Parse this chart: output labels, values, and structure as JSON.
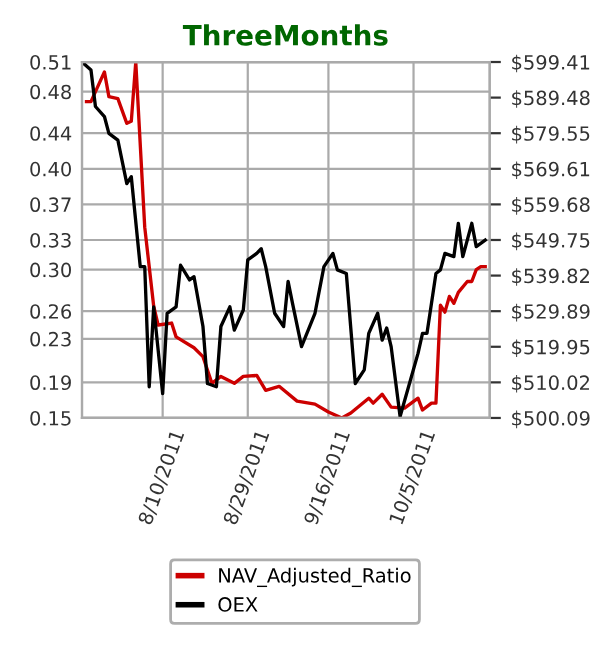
{
  "chart_data": {
    "type": "line",
    "title": "ThreeMonths",
    "xlim": [
      "2011-07-23",
      "2011-10-22"
    ],
    "xticks": [
      {
        "value": "2011-08-10",
        "label": "8/10/2011"
      },
      {
        "value": "2011-08-29",
        "label": "8/29/2011"
      },
      {
        "value": "2011-09-16",
        "label": "9/16/2011"
      },
      {
        "value": "2011-10-05",
        "label": "10/5/2011"
      }
    ],
    "ylim": [
      0.15,
      0.51
    ],
    "yticks": [
      {
        "value": 0.15,
        "label": "0.15"
      },
      {
        "value": 0.186,
        "label": "0.19"
      },
      {
        "value": 0.23,
        "label": "0.23"
      },
      {
        "value": 0.258,
        "label": "0.26"
      },
      {
        "value": 0.3,
        "label": "0.30"
      },
      {
        "value": 0.33,
        "label": "0.33"
      },
      {
        "value": 0.366,
        "label": "0.37"
      },
      {
        "value": 0.402,
        "label": "0.40"
      },
      {
        "value": 0.438,
        "label": "0.44"
      },
      {
        "value": 0.48,
        "label": "0.48"
      },
      {
        "value": 0.51,
        "label": "0.51"
      }
    ],
    "y2lim": [
      500.09,
      599.41
    ],
    "y2ticks": [
      {
        "value": 500.09,
        "label": "$500.09"
      },
      {
        "value": 510.022,
        "label": "$510.02"
      },
      {
        "value": 519.954,
        "label": "$519.95"
      },
      {
        "value": 529.886,
        "label": "$529.89"
      },
      {
        "value": 539.818,
        "label": "$539.82"
      },
      {
        "value": 549.75,
        "label": "$549.75"
      },
      {
        "value": 559.682,
        "label": "$559.68"
      },
      {
        "value": 569.614,
        "label": "$569.61"
      },
      {
        "value": 579.546,
        "label": "$579.55"
      },
      {
        "value": 589.478,
        "label": "$589.48"
      },
      {
        "value": 599.41,
        "label": "$599.41"
      }
    ],
    "grid": true,
    "legend": "bottom",
    "marker": "none",
    "line_style": "solid",
    "series": [
      {
        "name": "NAV_Adjusted_Ratio",
        "color": "#cc0000",
        "x": [
          "2011-07-24",
          "2011-07-25",
          "2011-07-28",
          "2011-07-29",
          "2011-07-31",
          "2011-08-02",
          "2011-08-03",
          "2011-08-04",
          "2011-08-06",
          "2011-08-08",
          "2011-08-09",
          "2011-08-12",
          "2011-08-13",
          "2011-08-17",
          "2011-08-19",
          "2011-08-21",
          "2011-08-23",
          "2011-08-26",
          "2011-08-28",
          "2011-08-31",
          "2011-09-02",
          "2011-09-05",
          "2011-09-09",
          "2011-09-13",
          "2011-09-16",
          "2011-09-19",
          "2011-09-21",
          "2011-09-25",
          "2011-09-26",
          "2011-09-28",
          "2011-09-30",
          "2011-10-03",
          "2011-10-06",
          "2011-10-07",
          "2011-10-09",
          "2011-10-10",
          "2011-10-11",
          "2011-10-12",
          "2011-10-13",
          "2011-10-14",
          "2011-10-15",
          "2011-10-17",
          "2011-10-18",
          "2011-10-19",
          "2011-10-20",
          "2011-10-21"
        ],
        "values": [
          0.47,
          0.47,
          0.5,
          0.475,
          0.473,
          0.448,
          0.45,
          0.51,
          0.343,
          0.263,
          0.244,
          0.246,
          0.232,
          0.221,
          0.212,
          0.185,
          0.192,
          0.185,
          0.192,
          0.193,
          0.178,
          0.182,
          0.167,
          0.164,
          0.156,
          0.15,
          0.155,
          0.17,
          0.165,
          0.174,
          0.161,
          0.16,
          0.17,
          0.158,
          0.165,
          0.165,
          0.264,
          0.257,
          0.273,
          0.266,
          0.277,
          0.288,
          0.288,
          0.3,
          0.303,
          0.303
        ]
      },
      {
        "name": "OEX",
        "color": "#000000",
        "axis": "y2",
        "x": [
          "2011-07-23",
          "2011-07-25",
          "2011-07-26",
          "2011-07-28",
          "2011-07-29",
          "2011-07-31",
          "2011-08-02",
          "2011-08-03",
          "2011-08-05",
          "2011-08-06",
          "2011-08-07",
          "2011-08-08",
          "2011-08-10",
          "2011-08-11",
          "2011-08-13",
          "2011-08-14",
          "2011-08-16",
          "2011-08-17",
          "2011-08-19",
          "2011-08-20",
          "2011-08-22",
          "2011-08-23",
          "2011-08-25",
          "2011-08-26",
          "2011-08-28",
          "2011-08-29",
          "2011-08-31",
          "2011-09-01",
          "2011-09-02",
          "2011-09-04",
          "2011-09-06",
          "2011-09-07",
          "2011-09-08",
          "2011-09-10",
          "2011-09-13",
          "2011-09-15",
          "2011-09-17",
          "2011-09-18",
          "2011-09-20",
          "2011-09-22",
          "2011-09-24",
          "2011-09-25",
          "2011-09-27",
          "2011-09-28",
          "2011-09-29",
          "2011-09-30",
          "2011-10-02",
          "2011-10-06",
          "2011-10-07",
          "2011-10-08",
          "2011-10-09",
          "2011-10-10",
          "2011-10-11",
          "2011-10-12",
          "2011-10-14",
          "2011-10-15",
          "2011-10-16",
          "2011-10-18",
          "2011-10-19",
          "2011-10-21"
        ],
        "values": [
          599.4,
          597.2,
          587.0,
          584.2,
          579.5,
          577.6,
          565.5,
          567.4,
          542.3,
          542.3,
          508.8,
          531.1,
          506.9,
          529.3,
          531.1,
          542.7,
          538.6,
          539.5,
          525.6,
          509.7,
          508.8,
          525.6,
          531.1,
          524.6,
          530.2,
          544.2,
          546.0,
          547.3,
          542.3,
          529.3,
          525.6,
          538.2,
          532.0,
          520.0,
          529.3,
          542.3,
          546.0,
          541.4,
          540.4,
          509.7,
          513.5,
          523.7,
          529.3,
          521.8,
          525.2,
          520.0,
          500.5,
          518.1,
          523.7,
          523.7,
          532.0,
          540.4,
          541.4,
          546.0,
          545.1,
          554.4,
          545.1,
          554.4,
          547.9,
          549.7
        ]
      }
    ]
  }
}
